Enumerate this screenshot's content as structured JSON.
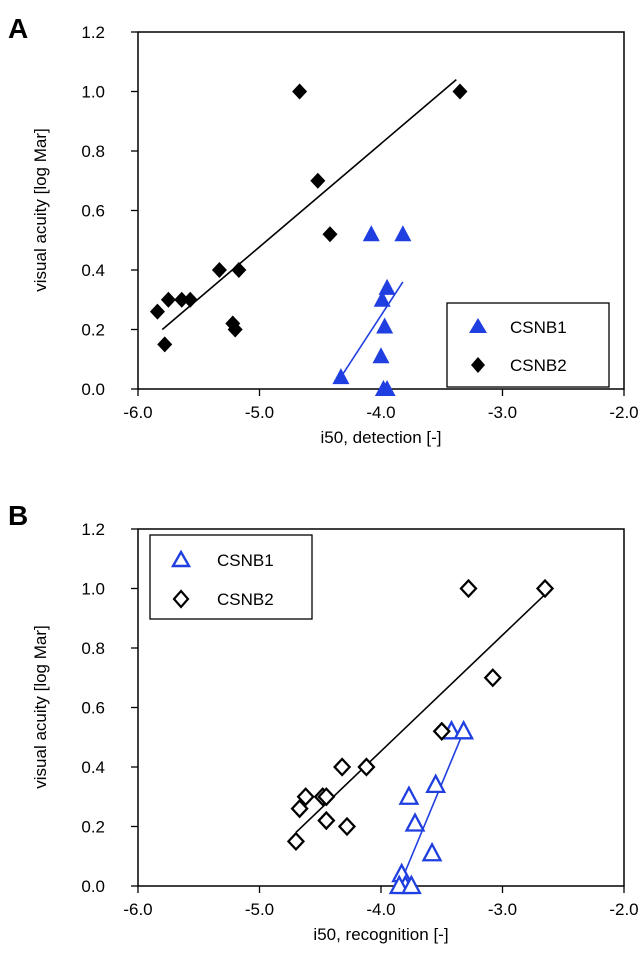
{
  "figure": {
    "panels": [
      {
        "letter": "A",
        "xlabel": "i50, detection [-]",
        "ylabel": "visual acuity [log Mar]",
        "xtick_labels": [
          "-6.0",
          "-5.0",
          "-4.0",
          "-3.0",
          "-2.0"
        ],
        "ytick_labels": [
          "0.0",
          "0.2",
          "0.4",
          "0.6",
          "0.8",
          "1.0",
          "1.2"
        ],
        "legend": [
          "CSNB1",
          "CSNB2"
        ]
      },
      {
        "letter": "B",
        "xlabel": "i50, recognition [-]",
        "ylabel": "visual acuity [log Mar]",
        "xtick_labels": [
          "-6.0",
          "-5.0",
          "-4.0",
          "-3.0",
          "-2.0"
        ],
        "ytick_labels": [
          "0.0",
          "0.2",
          "0.4",
          "0.6",
          "0.8",
          "1.0",
          "1.2"
        ],
        "legend": [
          "CSNB1",
          "CSNB2"
        ]
      }
    ]
  },
  "chart_data": [
    {
      "type": "scatter",
      "panel": "A",
      "xlabel": "i50, detection [-]",
      "ylabel": "visual acuity [log Mar]",
      "xlim": [
        -6.0,
        -2.0
      ],
      "ylim": [
        0.0,
        1.2
      ],
      "xticks": [
        -6.0,
        -5.0,
        -4.0,
        -3.0,
        -2.0
      ],
      "yticks": [
        0.0,
        0.2,
        0.4,
        0.6,
        0.8,
        1.0,
        1.2
      ],
      "legend_position": "bottom-right",
      "series": [
        {
          "name": "CSNB1",
          "marker": "filled-triangle",
          "color": "#1f3fe0",
          "points": [
            [
              -4.33,
              0.04
            ],
            [
              -4.08,
              0.52
            ],
            [
              -3.82,
              0.52
            ],
            [
              -3.95,
              0.34
            ],
            [
              -3.99,
              0.3
            ],
            [
              -3.97,
              0.21
            ],
            [
              -4.0,
              0.11
            ],
            [
              -3.98,
              0.0
            ],
            [
              -3.95,
              0.0
            ]
          ],
          "fit": [
            [
              -4.33,
              0.04
            ],
            [
              -3.82,
              0.36
            ]
          ]
        },
        {
          "name": "CSNB2",
          "marker": "filled-diamond",
          "color": "#000000",
          "points": [
            [
              -5.84,
              0.26
            ],
            [
              -5.78,
              0.15
            ],
            [
              -5.75,
              0.3
            ],
            [
              -5.64,
              0.3
            ],
            [
              -5.57,
              0.3
            ],
            [
              -5.33,
              0.4
            ],
            [
              -5.22,
              0.22
            ],
            [
              -5.2,
              0.2
            ],
            [
              -5.17,
              0.4
            ],
            [
              -4.67,
              1.0
            ],
            [
              -4.52,
              0.7
            ],
            [
              -4.42,
              0.52
            ],
            [
              -3.35,
              1.0
            ]
          ],
          "fit": [
            [
              -5.8,
              0.2
            ],
            [
              -3.38,
              1.04
            ]
          ]
        }
      ]
    },
    {
      "type": "scatter",
      "panel": "B",
      "xlabel": "i50, recognition [-]",
      "ylabel": "visual acuity [log Mar]",
      "xlim": [
        -6.0,
        -2.0
      ],
      "ylim": [
        0.0,
        1.2
      ],
      "xticks": [
        -6.0,
        -5.0,
        -4.0,
        -3.0,
        -2.0
      ],
      "yticks": [
        0.0,
        0.2,
        0.4,
        0.6,
        0.8,
        1.0,
        1.2
      ],
      "legend_position": "top-left",
      "series": [
        {
          "name": "CSNB1",
          "marker": "open-triangle",
          "color": "#1f3fe0",
          "points": [
            [
              -3.83,
              0.04
            ],
            [
              -3.8,
              0.0
            ],
            [
              -3.85,
              0.0
            ],
            [
              -3.75,
              0.0
            ],
            [
              -3.58,
              0.11
            ],
            [
              -3.72,
              0.21
            ],
            [
              -3.77,
              0.3
            ],
            [
              -3.55,
              0.34
            ],
            [
              -3.42,
              0.52
            ],
            [
              -3.32,
              0.52
            ]
          ],
          "fit": [
            [
              -3.85,
              0.0
            ],
            [
              -3.32,
              0.52
            ]
          ]
        },
        {
          "name": "CSNB2",
          "marker": "open-diamond",
          "color": "#000000",
          "points": [
            [
              -4.7,
              0.15
            ],
            [
              -4.67,
              0.26
            ],
            [
              -4.62,
              0.3
            ],
            [
              -4.48,
              0.3
            ],
            [
              -4.45,
              0.3
            ],
            [
              -4.45,
              0.22
            ],
            [
              -4.28,
              0.2
            ],
            [
              -4.32,
              0.4
            ],
            [
              -4.12,
              0.4
            ],
            [
              -3.5,
              0.52
            ],
            [
              -3.28,
              1.0
            ],
            [
              -3.08,
              0.7
            ],
            [
              -2.65,
              1.0
            ]
          ],
          "fit": [
            [
              -4.7,
              0.18
            ],
            [
              -2.65,
              0.98
            ]
          ]
        }
      ]
    }
  ]
}
